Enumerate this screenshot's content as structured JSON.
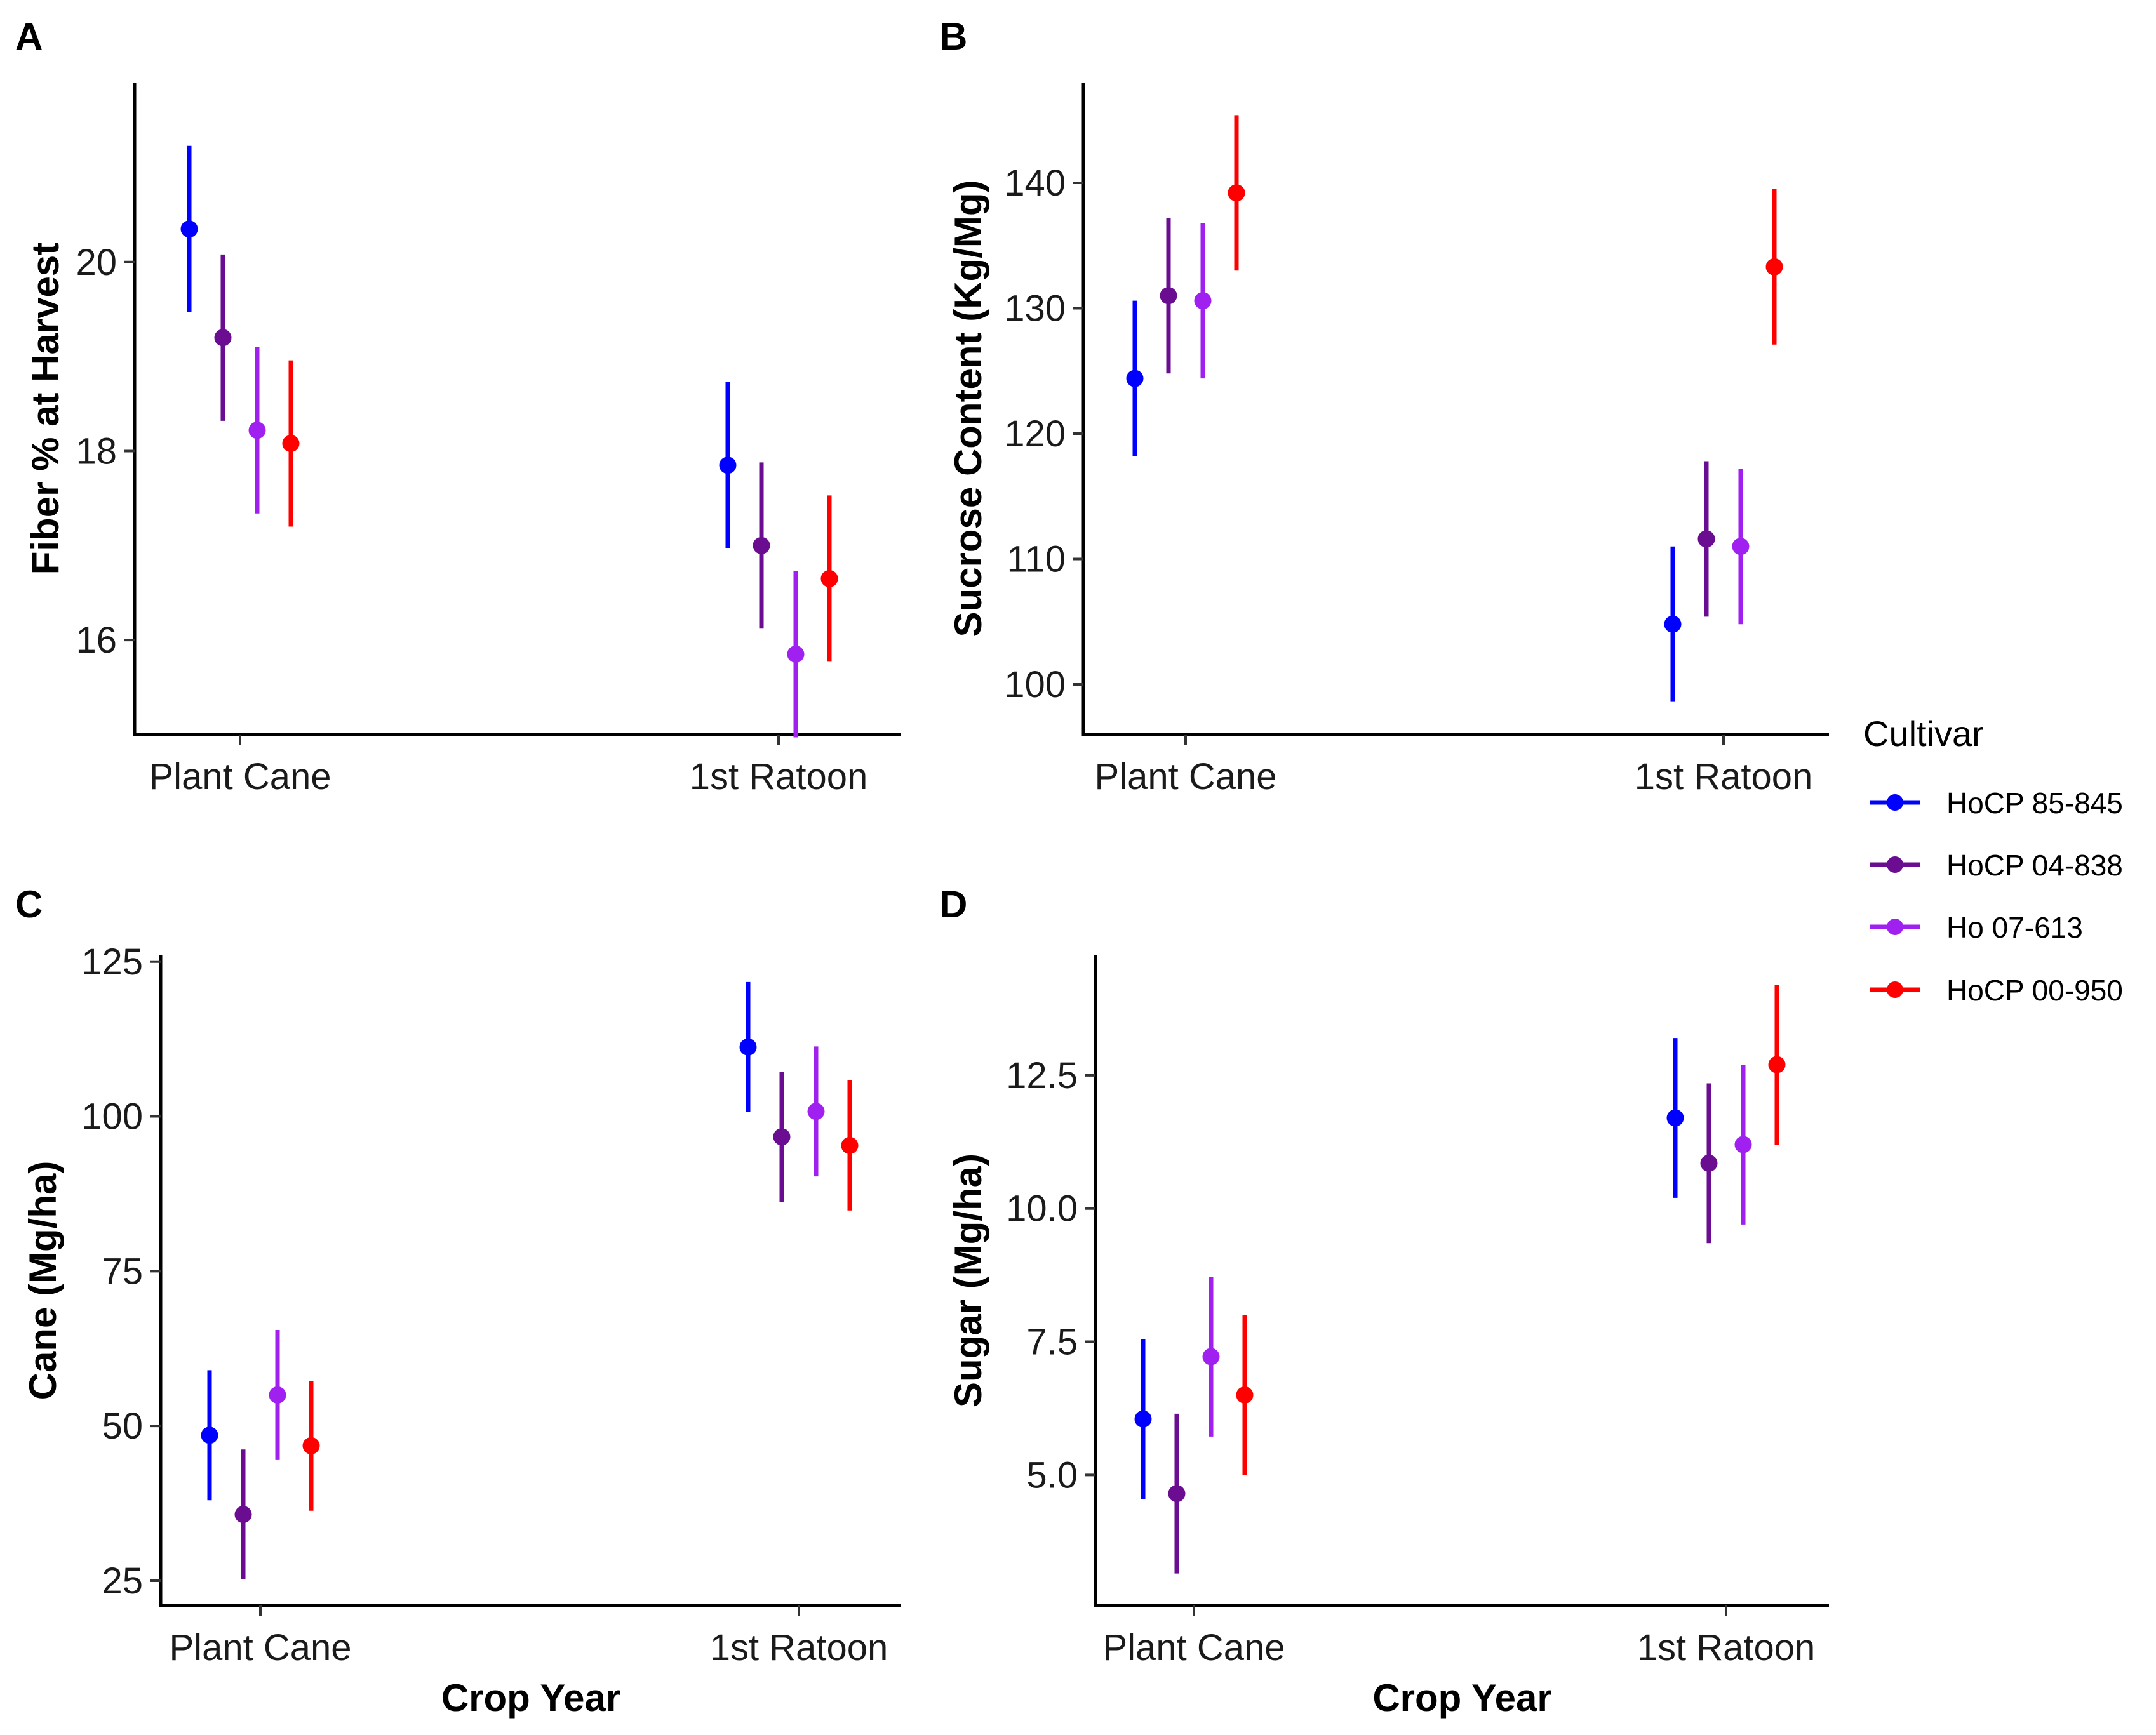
{
  "legend": {
    "title": "Cultivar",
    "entries": [
      {
        "label": "HoCP 85-845",
        "color": "#0000ff"
      },
      {
        "label": "HoCP 04-838",
        "color": "#6a0d91"
      },
      {
        "label": "Ho 07-613",
        "color": "#a020f0"
      },
      {
        "label": "HoCP 00-950",
        "color": "#ff0000"
      }
    ]
  },
  "chart_data": [
    {
      "panel": "A",
      "type": "scatter",
      "title": "",
      "xlabel": "",
      "ylabel": "Fiber % at Harvest",
      "categories": [
        "Plant Cane",
        "1st Ratoon"
      ],
      "ylim": [
        15.0,
        21.9
      ],
      "yticks": [
        16,
        18,
        20
      ],
      "tick_decimals": 0,
      "series": [
        {
          "name": "HoCP 85-845",
          "values": [
            20.35,
            17.85
          ],
          "lower": [
            19.47,
            16.97
          ],
          "upper": [
            21.23,
            18.73
          ]
        },
        {
          "name": "HoCP 04-838",
          "values": [
            19.2,
            17.0
          ],
          "lower": [
            18.32,
            16.12
          ],
          "upper": [
            20.08,
            17.88
          ]
        },
        {
          "name": "Ho 07-613",
          "values": [
            18.22,
            15.85
          ],
          "lower": [
            17.34,
            14.97
          ],
          "upper": [
            19.1,
            16.73
          ]
        },
        {
          "name": "HoCP 00-950",
          "values": [
            18.08,
            16.65
          ],
          "lower": [
            17.2,
            15.77
          ],
          "upper": [
            18.96,
            17.53
          ]
        }
      ]
    },
    {
      "panel": "B",
      "type": "scatter",
      "title": "",
      "xlabel": "",
      "ylabel": "Sucrose Content (Kg/Mg)",
      "categories": [
        "Plant Cane",
        "1st Ratoon"
      ],
      "ylim": [
        96.0,
        148.0
      ],
      "yticks": [
        100,
        110,
        120,
        130,
        140
      ],
      "tick_decimals": 0,
      "series": [
        {
          "name": "HoCP 85-845",
          "values": [
            124.4,
            104.8
          ],
          "lower": [
            118.2,
            98.6
          ],
          "upper": [
            130.6,
            111.0
          ]
        },
        {
          "name": "HoCP 04-838",
          "values": [
            131.0,
            111.6
          ],
          "lower": [
            124.8,
            105.4
          ],
          "upper": [
            137.2,
            117.8
          ]
        },
        {
          "name": "Ho 07-613",
          "values": [
            130.6,
            111.0
          ],
          "lower": [
            124.4,
            104.8
          ],
          "upper": [
            136.8,
            117.2
          ]
        },
        {
          "name": "HoCP 00-950",
          "values": [
            139.2,
            133.3
          ],
          "lower": [
            133.0,
            127.1
          ],
          "upper": [
            145.4,
            139.5
          ]
        }
      ]
    },
    {
      "panel": "C",
      "type": "scatter",
      "title": "",
      "xlabel": "Crop Year",
      "ylabel": "Cane (Mg/ha)",
      "categories": [
        "Plant Cane",
        "1st Ratoon"
      ],
      "ylim": [
        21.0,
        126.0
      ],
      "yticks": [
        25,
        50,
        75,
        100,
        125
      ],
      "tick_decimals": 0,
      "series": [
        {
          "name": "HoCP 85-845",
          "values": [
            48.5,
            111.2
          ],
          "lower": [
            38.0,
            100.7
          ],
          "upper": [
            59.0,
            121.7
          ]
        },
        {
          "name": "HoCP 04-838",
          "values": [
            35.7,
            96.7
          ],
          "lower": [
            25.2,
            86.2
          ],
          "upper": [
            46.2,
            107.2
          ]
        },
        {
          "name": "Ho 07-613",
          "values": [
            55.0,
            100.8
          ],
          "lower": [
            44.5,
            90.3
          ],
          "upper": [
            65.5,
            111.3
          ]
        },
        {
          "name": "HoCP 00-950",
          "values": [
            46.8,
            95.3
          ],
          "lower": [
            36.3,
            84.8
          ],
          "upper": [
            57.3,
            105.8
          ]
        }
      ]
    },
    {
      "panel": "D",
      "type": "scatter",
      "title": "",
      "xlabel": "Crop Year",
      "ylabel": "Sugar (Mg/ha)",
      "categories": [
        "Plant Cane",
        "1st Ratoon"
      ],
      "ylim": [
        2.55,
        14.75
      ],
      "yticks": [
        5.0,
        7.5,
        10.0,
        12.5
      ],
      "tick_decimals": 1,
      "series": [
        {
          "name": "HoCP 85-845",
          "values": [
            6.05,
            11.7
          ],
          "lower": [
            4.55,
            10.2
          ],
          "upper": [
            7.55,
            13.2
          ]
        },
        {
          "name": "HoCP 04-838",
          "values": [
            4.65,
            10.85
          ],
          "lower": [
            3.15,
            9.35
          ],
          "upper": [
            6.15,
            12.35
          ]
        },
        {
          "name": "Ho 07-613",
          "values": [
            7.22,
            11.2
          ],
          "lower": [
            5.72,
            9.7
          ],
          "upper": [
            8.72,
            12.7
          ]
        },
        {
          "name": "HoCP 00-950",
          "values": [
            6.5,
            12.7
          ],
          "lower": [
            5.0,
            11.2
          ],
          "upper": [
            8.0,
            14.2
          ]
        }
      ]
    }
  ]
}
